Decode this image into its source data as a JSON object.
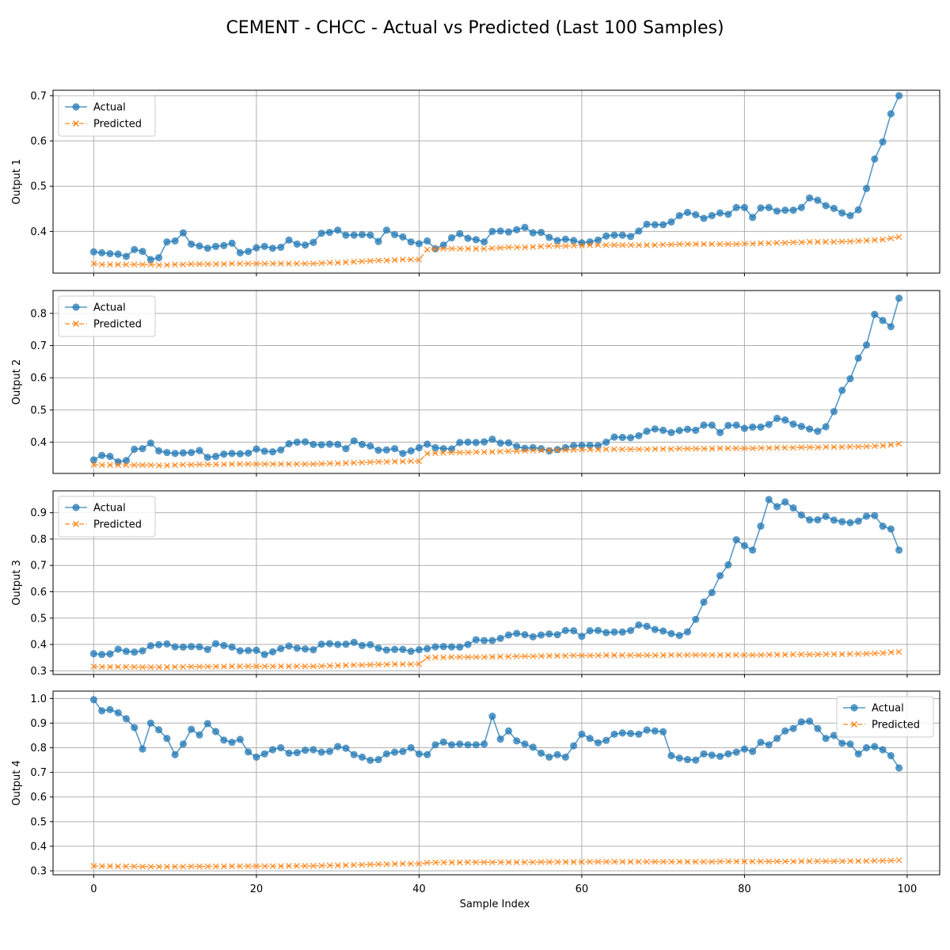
{
  "figure": {
    "title": "CEMENT - CHCC - Actual vs Predicted (Last 100 Samples)",
    "xlabel": "Sample Index"
  },
  "colors": {
    "actual": "#1f77b4",
    "predicted": "#ff7f0e",
    "grid": "#b0b0b0",
    "axes": "#000000"
  },
  "chart_data": [
    {
      "type": "line",
      "ylabel": "Output 1",
      "xlim": [
        -5,
        104
      ],
      "ylim": [
        0.308,
        0.712
      ],
      "yticks": [
        0.4,
        0.5,
        0.6,
        0.7
      ],
      "xticks": [
        0,
        20,
        40,
        60,
        80,
        100
      ],
      "grid": true,
      "legend": "upper-left",
      "series": [
        {
          "name": "Actual",
          "marker": "circle",
          "linestyle": "solid",
          "values": [
            0.355,
            0.353,
            0.351,
            0.35,
            0.345,
            0.36,
            0.356,
            0.338,
            0.342,
            0.377,
            0.379,
            0.397,
            0.372,
            0.368,
            0.363,
            0.367,
            0.369,
            0.374,
            0.353,
            0.356,
            0.364,
            0.367,
            0.363,
            0.365,
            0.381,
            0.372,
            0.37,
            0.376,
            0.396,
            0.398,
            0.403,
            0.392,
            0.392,
            0.393,
            0.392,
            0.378,
            0.403,
            0.393,
            0.388,
            0.377,
            0.373,
            0.379,
            0.362,
            0.37,
            0.386,
            0.395,
            0.385,
            0.382,
            0.377,
            0.4,
            0.401,
            0.399,
            0.404,
            0.409,
            0.397,
            0.398,
            0.387,
            0.38,
            0.383,
            0.38,
            0.375,
            0.377,
            0.381,
            0.39,
            0.392,
            0.392,
            0.389,
            0.401,
            0.416,
            0.415,
            0.415,
            0.421,
            0.435,
            0.442,
            0.437,
            0.429,
            0.435,
            0.441,
            0.438,
            0.453,
            0.453,
            0.431,
            0.452,
            0.453,
            0.445,
            0.447,
            0.447,
            0.453,
            0.474,
            0.469,
            0.457,
            0.451,
            0.441,
            0.435,
            0.448,
            0.495,
            0.56,
            0.598,
            0.66,
            0.7
          ]
        },
        {
          "name": "Predicted",
          "marker": "x",
          "linestyle": "dashed",
          "values": [
            0.329,
            0.327,
            0.327,
            0.327,
            0.327,
            0.327,
            0.327,
            0.327,
            0.326,
            0.326,
            0.327,
            0.327,
            0.328,
            0.328,
            0.328,
            0.328,
            0.328,
            0.329,
            0.329,
            0.329,
            0.329,
            0.329,
            0.329,
            0.329,
            0.329,
            0.329,
            0.329,
            0.329,
            0.33,
            0.331,
            0.331,
            0.332,
            0.333,
            0.334,
            0.335,
            0.336,
            0.336,
            0.337,
            0.338,
            0.338,
            0.338,
            0.36,
            0.361,
            0.362,
            0.362,
            0.362,
            0.362,
            0.362,
            0.362,
            0.363,
            0.364,
            0.365,
            0.365,
            0.365,
            0.366,
            0.367,
            0.368,
            0.368,
            0.368,
            0.369,
            0.369,
            0.37,
            0.37,
            0.37,
            0.37,
            0.37,
            0.37,
            0.37,
            0.37,
            0.37,
            0.371,
            0.371,
            0.372,
            0.372,
            0.372,
            0.372,
            0.372,
            0.372,
            0.372,
            0.372,
            0.373,
            0.373,
            0.374,
            0.374,
            0.375,
            0.375,
            0.376,
            0.376,
            0.377,
            0.377,
            0.377,
            0.377,
            0.378,
            0.378,
            0.379,
            0.38,
            0.381,
            0.382,
            0.385,
            0.388
          ]
        }
      ]
    },
    {
      "type": "line",
      "ylabel": "Output 2",
      "xlim": [
        -5,
        104
      ],
      "ylim": [
        0.303,
        0.871
      ],
      "yticks": [
        0.4,
        0.5,
        0.6,
        0.7,
        0.8
      ],
      "xticks": [
        0,
        20,
        40,
        60,
        80,
        100
      ],
      "grid": true,
      "legend": "upper-left",
      "series": [
        {
          "name": "Actual",
          "marker": "circle",
          "linestyle": "solid",
          "values": [
            0.345,
            0.359,
            0.356,
            0.339,
            0.343,
            0.378,
            0.38,
            0.397,
            0.373,
            0.368,
            0.365,
            0.367,
            0.368,
            0.374,
            0.353,
            0.356,
            0.363,
            0.365,
            0.364,
            0.366,
            0.379,
            0.372,
            0.37,
            0.376,
            0.395,
            0.4,
            0.401,
            0.393,
            0.392,
            0.394,
            0.393,
            0.38,
            0.404,
            0.393,
            0.388,
            0.375,
            0.376,
            0.38,
            0.365,
            0.373,
            0.383,
            0.394,
            0.383,
            0.38,
            0.379,
            0.399,
            0.4,
            0.399,
            0.401,
            0.409,
            0.397,
            0.398,
            0.387,
            0.381,
            0.383,
            0.38,
            0.373,
            0.377,
            0.383,
            0.389,
            0.39,
            0.39,
            0.389,
            0.4,
            0.416,
            0.415,
            0.414,
            0.42,
            0.434,
            0.441,
            0.437,
            0.43,
            0.436,
            0.44,
            0.437,
            0.453,
            0.453,
            0.43,
            0.452,
            0.453,
            0.443,
            0.447,
            0.447,
            0.455,
            0.474,
            0.469,
            0.456,
            0.449,
            0.441,
            0.434,
            0.448,
            0.495,
            0.561,
            0.597,
            0.661,
            0.702,
            0.797,
            0.778,
            0.759,
            0.847
          ]
        },
        {
          "name": "Predicted",
          "marker": "x",
          "linestyle": "dashed",
          "values": [
            0.33,
            0.329,
            0.329,
            0.329,
            0.329,
            0.329,
            0.329,
            0.329,
            0.328,
            0.328,
            0.329,
            0.33,
            0.33,
            0.331,
            0.331,
            0.331,
            0.331,
            0.332,
            0.332,
            0.332,
            0.332,
            0.332,
            0.332,
            0.332,
            0.332,
            0.332,
            0.332,
            0.332,
            0.333,
            0.334,
            0.334,
            0.335,
            0.336,
            0.337,
            0.338,
            0.339,
            0.339,
            0.34,
            0.34,
            0.341,
            0.341,
            0.365,
            0.366,
            0.367,
            0.368,
            0.368,
            0.368,
            0.369,
            0.369,
            0.37,
            0.371,
            0.372,
            0.372,
            0.373,
            0.374,
            0.375,
            0.375,
            0.375,
            0.376,
            0.376,
            0.377,
            0.377,
            0.377,
            0.378,
            0.378,
            0.378,
            0.378,
            0.378,
            0.378,
            0.379,
            0.379,
            0.379,
            0.38,
            0.38,
            0.38,
            0.38,
            0.38,
            0.381,
            0.381,
            0.381,
            0.381,
            0.381,
            0.382,
            0.382,
            0.383,
            0.383,
            0.383,
            0.384,
            0.384,
            0.384,
            0.385,
            0.385,
            0.385,
            0.386,
            0.386,
            0.387,
            0.388,
            0.389,
            0.392,
            0.395
          ]
        }
      ]
    },
    {
      "type": "line",
      "ylabel": "Output 3",
      "xlim": [
        -5,
        104
      ],
      "ylim": [
        0.286,
        0.983
      ],
      "yticks": [
        0.3,
        0.4,
        0.5,
        0.6,
        0.7,
        0.8,
        0.9
      ],
      "xticks": [
        0,
        20,
        40,
        60,
        80,
        100
      ],
      "grid": true,
      "legend": "upper-left",
      "series": [
        {
          "name": "Actual",
          "marker": "circle",
          "linestyle": "solid",
          "values": [
            0.365,
            0.362,
            0.364,
            0.382,
            0.374,
            0.371,
            0.376,
            0.395,
            0.399,
            0.402,
            0.391,
            0.39,
            0.392,
            0.391,
            0.381,
            0.403,
            0.396,
            0.39,
            0.376,
            0.377,
            0.378,
            0.362,
            0.372,
            0.384,
            0.394,
            0.386,
            0.383,
            0.38,
            0.401,
            0.403,
            0.4,
            0.401,
            0.408,
            0.396,
            0.399,
            0.386,
            0.379,
            0.381,
            0.381,
            0.374,
            0.38,
            0.384,
            0.391,
            0.392,
            0.391,
            0.39,
            0.4,
            0.418,
            0.415,
            0.415,
            0.423,
            0.436,
            0.442,
            0.437,
            0.429,
            0.436,
            0.44,
            0.437,
            0.453,
            0.452,
            0.431,
            0.452,
            0.453,
            0.445,
            0.447,
            0.447,
            0.453,
            0.474,
            0.469,
            0.457,
            0.451,
            0.441,
            0.434,
            0.448,
            0.495,
            0.561,
            0.597,
            0.661,
            0.702,
            0.797,
            0.775,
            0.758,
            0.849,
            0.95,
            0.923,
            0.941,
            0.918,
            0.891,
            0.873,
            0.873,
            0.886,
            0.872,
            0.866,
            0.862,
            0.868,
            0.887,
            0.889,
            0.849,
            0.838,
            0.758
          ]
        },
        {
          "name": "Predicted",
          "marker": "x",
          "linestyle": "dashed",
          "values": [
            0.316,
            0.315,
            0.315,
            0.315,
            0.315,
            0.315,
            0.314,
            0.314,
            0.314,
            0.314,
            0.315,
            0.315,
            0.316,
            0.316,
            0.316,
            0.316,
            0.316,
            0.317,
            0.317,
            0.317,
            0.317,
            0.317,
            0.317,
            0.317,
            0.317,
            0.317,
            0.317,
            0.317,
            0.318,
            0.319,
            0.32,
            0.321,
            0.322,
            0.322,
            0.323,
            0.324,
            0.324,
            0.325,
            0.325,
            0.325,
            0.326,
            0.35,
            0.351,
            0.351,
            0.352,
            0.352,
            0.352,
            0.352,
            0.352,
            0.353,
            0.354,
            0.354,
            0.355,
            0.355,
            0.355,
            0.356,
            0.357,
            0.357,
            0.357,
            0.358,
            0.358,
            0.358,
            0.358,
            0.359,
            0.359,
            0.359,
            0.359,
            0.359,
            0.359,
            0.359,
            0.359,
            0.36,
            0.36,
            0.36,
            0.36,
            0.36,
            0.36,
            0.36,
            0.36,
            0.36,
            0.36,
            0.36,
            0.36,
            0.361,
            0.361,
            0.361,
            0.362,
            0.362,
            0.362,
            0.362,
            0.363,
            0.363,
            0.363,
            0.364,
            0.364,
            0.365,
            0.366,
            0.367,
            0.37,
            0.372
          ]
        }
      ]
    },
    {
      "type": "line",
      "ylabel": "Output 4",
      "xlim": [
        -5,
        104
      ],
      "ylim": [
        0.284,
        1.03
      ],
      "yticks": [
        0.3,
        0.4,
        0.5,
        0.6,
        0.7,
        0.8,
        0.9,
        1.0
      ],
      "ytick_labels": [
        "0.3",
        "0.4",
        "0.5",
        "0.6",
        "0.7",
        "0.8",
        "0.9",
        "1.0"
      ],
      "xticks": [
        0,
        20,
        40,
        60,
        80,
        100
      ],
      "grid": true,
      "legend": "upper-right",
      "series": [
        {
          "name": "Actual",
          "marker": "circle",
          "linestyle": "solid",
          "values": [
            0.995,
            0.95,
            0.955,
            0.942,
            0.918,
            0.882,
            0.795,
            0.9,
            0.873,
            0.838,
            0.772,
            0.815,
            0.875,
            0.852,
            0.898,
            0.866,
            0.831,
            0.822,
            0.834,
            0.783,
            0.762,
            0.775,
            0.792,
            0.8,
            0.778,
            0.78,
            0.79,
            0.792,
            0.782,
            0.785,
            0.805,
            0.798,
            0.772,
            0.762,
            0.749,
            0.752,
            0.775,
            0.782,
            0.785,
            0.8,
            0.775,
            0.772,
            0.812,
            0.823,
            0.812,
            0.815,
            0.812,
            0.812,
            0.815,
            0.928,
            0.835,
            0.868,
            0.828,
            0.815,
            0.802,
            0.778,
            0.762,
            0.772,
            0.762,
            0.808,
            0.855,
            0.838,
            0.82,
            0.83,
            0.855,
            0.86,
            0.858,
            0.855,
            0.872,
            0.868,
            0.865,
            0.768,
            0.758,
            0.752,
            0.75,
            0.775,
            0.77,
            0.765,
            0.775,
            0.782,
            0.795,
            0.785,
            0.822,
            0.812,
            0.838,
            0.868,
            0.878,
            0.905,
            0.908,
            0.878,
            0.838,
            0.85,
            0.818,
            0.815,
            0.775,
            0.8,
            0.805,
            0.792,
            0.768,
            0.718
          ]
        },
        {
          "name": "Predicted",
          "marker": "x",
          "linestyle": "dashed",
          "values": [
            0.32,
            0.319,
            0.319,
            0.318,
            0.318,
            0.318,
            0.317,
            0.317,
            0.317,
            0.317,
            0.317,
            0.317,
            0.318,
            0.318,
            0.318,
            0.318,
            0.318,
            0.319,
            0.319,
            0.319,
            0.319,
            0.319,
            0.319,
            0.319,
            0.32,
            0.32,
            0.32,
            0.32,
            0.321,
            0.322,
            0.322,
            0.323,
            0.324,
            0.325,
            0.326,
            0.327,
            0.327,
            0.328,
            0.329,
            0.329,
            0.329,
            0.333,
            0.334,
            0.334,
            0.334,
            0.334,
            0.335,
            0.335,
            0.335,
            0.335,
            0.335,
            0.335,
            0.335,
            0.335,
            0.335,
            0.336,
            0.336,
            0.336,
            0.336,
            0.336,
            0.336,
            0.337,
            0.337,
            0.337,
            0.337,
            0.337,
            0.337,
            0.337,
            0.337,
            0.337,
            0.337,
            0.337,
            0.337,
            0.337,
            0.337,
            0.337,
            0.337,
            0.338,
            0.338,
            0.338,
            0.338,
            0.338,
            0.338,
            0.338,
            0.338,
            0.338,
            0.338,
            0.339,
            0.339,
            0.339,
            0.339,
            0.339,
            0.339,
            0.34,
            0.34,
            0.34,
            0.341,
            0.341,
            0.342,
            0.343
          ]
        }
      ]
    }
  ]
}
